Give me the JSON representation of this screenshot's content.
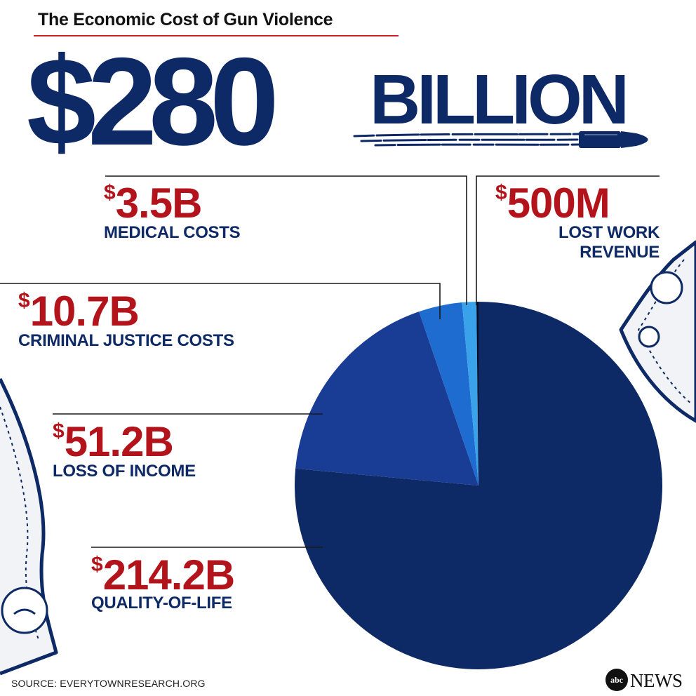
{
  "title": "The Economic Cost of Gun Violence",
  "total": {
    "amount": "$280",
    "unit": "BILLION"
  },
  "source": "SOURCE: EVERYTOWNRESEARCH.ORG",
  "brand": {
    "abc": "abc",
    "news": "NEWS"
  },
  "colors": {
    "navy": "#0e2a66",
    "red": "#b3141b",
    "rule": "#d71f26",
    "slice_quality_of_life": "#0e2a66",
    "slice_loss_of_income": "#193c95",
    "slice_criminal_justice": "#1f6cd0",
    "slice_medical": "#3aa2ea",
    "slice_lost_work": "#050d24"
  },
  "callouts": {
    "quality": {
      "currency": "$",
      "value": "214.2B",
      "label": "QUALITY-OF-LIFE"
    },
    "income": {
      "currency": "$",
      "value": "51.2B",
      "label": "LOSS OF INCOME"
    },
    "justice": {
      "currency": "$",
      "value": "10.7B",
      "label": "CRIMINAL JUSTICE COSTS"
    },
    "medical": {
      "currency": "$",
      "value": "3.5B",
      "label": "MEDICAL COSTS"
    },
    "lostwork": {
      "currency": "$",
      "value": "500M",
      "label_line1": "LOST WORK",
      "label_line2": "REVENUE"
    }
  },
  "chart_data": {
    "type": "pie",
    "title": "The Economic Cost of Gun Violence",
    "total": 280,
    "unit": "billion USD",
    "categories": [
      "QUALITY-OF-LIFE",
      "LOSS OF INCOME",
      "CRIMINAL JUSTICE COSTS",
      "MEDICAL COSTS",
      "LOST WORK REVENUE"
    ],
    "values": [
      214.2,
      51.2,
      10.7,
      3.5,
      0.5
    ],
    "colors": [
      "#0e2a66",
      "#193c95",
      "#1f6cd0",
      "#3aa2ea",
      "#050d24"
    ]
  }
}
